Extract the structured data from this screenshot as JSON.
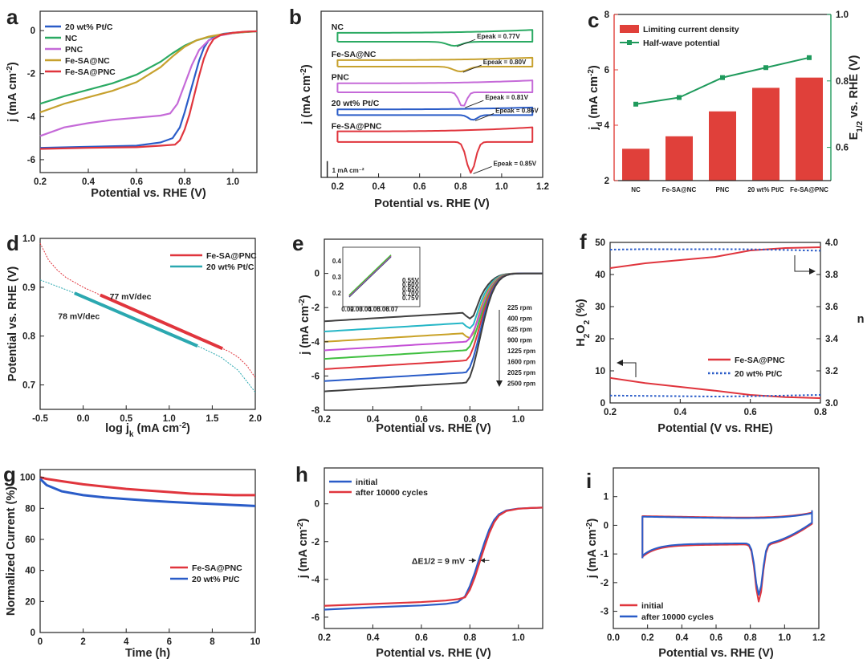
{
  "colors": {
    "pt": "#2A5CC8",
    "nc": "#2BAA63",
    "pnc": "#C56AD8",
    "fesanc": "#C7A12E",
    "fesapnc": "#E0353D",
    "teal": "#2BA8B0",
    "bar": "#E0403A",
    "green": "#1F9A5C",
    "dark": "#404040",
    "cyan": "#25B6C6",
    "mag": "#C44FD6",
    "lime": "#3FBF3F",
    "gold": "#C9A227"
  },
  "chart_data": [
    {
      "id": "a",
      "panel_label": "a",
      "type": "line",
      "xlabel": "Potential vs. RHE (V)",
      "ylabel": "j (mA cm⁻²)",
      "xlim": [
        0.2,
        1.1
      ],
      "ylim": [
        -6.6,
        0.9
      ],
      "xticks": [
        0.2,
        0.4,
        0.6,
        0.8,
        1.0
      ],
      "yticks": [
        -6,
        -4,
        -2,
        0
      ],
      "legend": "top-left",
      "series": [
        {
          "name": "20 wt% Pt/C",
          "color_key": "pt",
          "x": [
            0.2,
            0.4,
            0.6,
            0.7,
            0.75,
            0.78,
            0.8,
            0.82,
            0.84,
            0.86,
            0.88,
            0.9,
            0.93,
            0.96,
            1.0,
            1.05,
            1.1
          ],
          "y": [
            -5.45,
            -5.4,
            -5.35,
            -5.2,
            -5.0,
            -4.5,
            -3.8,
            -3.0,
            -2.2,
            -1.4,
            -0.8,
            -0.45,
            -0.25,
            -0.15,
            -0.1,
            -0.06,
            -0.03
          ]
        },
        {
          "name": "NC",
          "color_key": "nc",
          "x": [
            0.2,
            0.3,
            0.4,
            0.5,
            0.6,
            0.7,
            0.75,
            0.8,
            0.85,
            0.9,
            0.95,
            1.0,
            1.05,
            1.1
          ],
          "y": [
            -3.4,
            -3.05,
            -2.75,
            -2.45,
            -2.05,
            -1.45,
            -1.05,
            -0.7,
            -0.45,
            -0.3,
            -0.2,
            -0.12,
            -0.07,
            -0.04
          ]
        },
        {
          "name": "PNC",
          "color_key": "pnc",
          "x": [
            0.2,
            0.3,
            0.4,
            0.5,
            0.6,
            0.7,
            0.74,
            0.77,
            0.8,
            0.83,
            0.86,
            0.9,
            0.95,
            1.0,
            1.05,
            1.1
          ],
          "y": [
            -4.9,
            -4.5,
            -4.3,
            -4.15,
            -4.05,
            -3.95,
            -3.85,
            -3.4,
            -2.5,
            -1.6,
            -0.9,
            -0.45,
            -0.22,
            -0.12,
            -0.06,
            -0.03
          ]
        },
        {
          "name": "Fe-SA@NC",
          "color_key": "fesanc",
          "x": [
            0.2,
            0.3,
            0.4,
            0.5,
            0.6,
            0.7,
            0.75,
            0.8,
            0.85,
            0.9,
            0.95,
            1.0,
            1.05,
            1.1
          ],
          "y": [
            -3.8,
            -3.4,
            -3.1,
            -2.8,
            -2.4,
            -1.7,
            -1.2,
            -0.75,
            -0.45,
            -0.28,
            -0.18,
            -0.11,
            -0.06,
            -0.03
          ]
        },
        {
          "name": "Fe-SA@PNC",
          "color_key": "fesapnc",
          "x": [
            0.2,
            0.4,
            0.6,
            0.7,
            0.76,
            0.78,
            0.8,
            0.82,
            0.84,
            0.86,
            0.88,
            0.9,
            0.92,
            0.95,
            1.0,
            1.05,
            1.1
          ],
          "y": [
            -5.5,
            -5.45,
            -5.42,
            -5.35,
            -5.3,
            -5.1,
            -4.6,
            -3.9,
            -3.0,
            -2.1,
            -1.3,
            -0.75,
            -0.4,
            -0.2,
            -0.1,
            -0.05,
            -0.03
          ]
        }
      ]
    },
    {
      "id": "b",
      "panel_label": "b",
      "type": "line",
      "xlabel": "Potential vs. RHE (V)",
      "ylabel": "j (mA cm⁻²)",
      "xlim": [
        0.12,
        1.2
      ],
      "ylim": [
        -10.2,
        0
      ],
      "xticks": [
        0.2,
        0.4,
        0.6,
        0.8,
        1.0,
        1.2
      ],
      "scale_bar": "1 mA cm⁻²",
      "series": [
        {
          "name": "NC",
          "color_key": "nc",
          "offset": -1.6,
          "cap": 0.55,
          "tilt": 0.18,
          "peak_x": 0.77,
          "peak_depth": 0.25,
          "peak_width": 0.05,
          "label_x": 0.17,
          "label_dy": 0.3,
          "peak_label": "E_peak = 0.77V"
        },
        {
          "name": "Fe-SA@NC",
          "color_key": "fesanc",
          "offset": -3.2,
          "cap": 0.4,
          "tilt": 0.15,
          "peak_x": 0.8,
          "peak_depth": 0.3,
          "peak_width": 0.05,
          "label_x": 0.17,
          "label_dy": 0.3,
          "peak_label": "E_peak = 0.80V"
        },
        {
          "name": "PNC",
          "color_key": "pnc",
          "offset": -4.7,
          "cap": 0.55,
          "tilt": 0.18,
          "peak_x": 0.81,
          "peak_depth": 0.9,
          "peak_width": 0.025,
          "label_x": 0.17,
          "label_dy": 0.3,
          "peak_label": "E_peak = 0.81V"
        },
        {
          "name": "20 wt% Pt/C",
          "color_key": "pt",
          "offset": -6.2,
          "cap": 0.35,
          "tilt": 0.12,
          "peak_x": 0.86,
          "peak_depth": 0.3,
          "peak_width": 0.03,
          "label_x": 0.17,
          "label_dy": 0.3,
          "peak_label": "E_peak = 0.86V"
        },
        {
          "name": "Fe-SA@PNC",
          "color_key": "fesapnc",
          "offset": -7.7,
          "cap": 0.65,
          "tilt": 0.25,
          "peak_x": 0.85,
          "peak_depth": 1.9,
          "peak_width": 0.03,
          "label_x": 0.17,
          "label_dy": 0.25,
          "peak_label": "E_peak = 0.85V"
        }
      ]
    },
    {
      "id": "c",
      "panel_label": "c",
      "type": "bar",
      "categories": [
        "NC",
        "Fe-SA@NC",
        "PNC",
        "20 wt% Pt/C",
        "Fe-SA@PNC"
      ],
      "ylabel": "j_d (mA cm⁻²)",
      "y2label": "E_1/2 vs. RHE (V)",
      "ylim": [
        2,
        8
      ],
      "y2lim": [
        0.5,
        1.0
      ],
      "yticks": [
        2,
        4,
        6,
        8
      ],
      "y2ticks": [
        0.6,
        0.8,
        1.0
      ],
      "legend": "top-left",
      "series": [
        {
          "name": "Limiting current density",
          "kind": "bar",
          "color_key": "bar",
          "values": [
            3.15,
            3.6,
            4.5,
            5.35,
            5.72
          ]
        },
        {
          "name": "Half-wave potential",
          "kind": "line",
          "color_key": "green",
          "axis": "right",
          "values": [
            0.73,
            0.75,
            0.81,
            0.84,
            0.87
          ]
        }
      ]
    },
    {
      "id": "d",
      "panel_label": "d",
      "type": "line",
      "xlabel": "log j_k (mA cm⁻²)",
      "ylabel": "Potential vs. RHE (V)",
      "xlim": [
        -0.5,
        2.0
      ],
      "ylim": [
        0.65,
        1.0
      ],
      "xticks": [
        -0.5,
        0.0,
        0.5,
        1.0,
        1.5,
        2.0
      ],
      "yticks": [
        0.7,
        0.8,
        0.9,
        1.0
      ],
      "legend": "top-right",
      "series": [
        {
          "name": "Fe-SA@PNC",
          "color_key": "fesapnc",
          "x": [
            -0.5,
            -0.4,
            -0.3,
            -0.2,
            -0.1,
            0.0,
            0.2,
            0.4,
            0.6,
            0.8,
            1.0,
            1.2,
            1.4,
            1.6,
            1.7,
            1.8,
            1.9,
            2.0
          ],
          "y": [
            0.99,
            0.955,
            0.935,
            0.92,
            0.91,
            0.9,
            0.884,
            0.869,
            0.853,
            0.838,
            0.822,
            0.807,
            0.792,
            0.776,
            0.768,
            0.757,
            0.74,
            0.715
          ],
          "fit_x": [
            0.2,
            1.62
          ]
        },
        {
          "name": "20 wt% Pt/C",
          "color_key": "teal",
          "x": [
            -0.5,
            -0.2,
            0.0,
            0.2,
            0.4,
            0.6,
            0.8,
            1.0,
            1.2,
            1.4,
            1.6,
            1.8,
            2.0
          ],
          "y": [
            0.915,
            0.895,
            0.881,
            0.866,
            0.851,
            0.835,
            0.82,
            0.805,
            0.79,
            0.774,
            0.757,
            0.73,
            0.685
          ],
          "fit_x": [
            -0.1,
            1.33
          ]
        }
      ],
      "annotations": [
        {
          "text": "77 mV/dec",
          "x": 0.55,
          "y": 0.875,
          "color_key": "fesapnc"
        },
        {
          "text": "78 mV/dec",
          "x": -0.05,
          "y": 0.835,
          "color_key": "teal"
        }
      ]
    },
    {
      "id": "e",
      "panel_label": "e",
      "type": "line",
      "xlabel": "Potential vs. RHE (V)",
      "ylabel": "j (mA cm⁻²)",
      "xlim": [
        0.2,
        1.1
      ],
      "ylim": [
        -8,
        2
      ],
      "xticks": [
        0.2,
        0.4,
        0.6,
        0.8,
        1.0
      ],
      "yticks": [
        -8,
        -6,
        -4,
        -2,
        0
      ],
      "series": [
        {
          "name": "225 rpm",
          "color_key": "dark",
          "limit": -2.8
        },
        {
          "name": "400 rpm",
          "color_key": "cyan",
          "limit": -3.4
        },
        {
          "name": "625 rpm",
          "color_key": "gold",
          "limit": -4.0
        },
        {
          "name": "900 rpm",
          "color_key": "mag",
          "limit": -4.5
        },
        {
          "name": "1225 rpm",
          "color_key": "lime",
          "limit": -5.0
        },
        {
          "name": "1600 rpm",
          "color_key": "fesapnc",
          "limit": -5.6
        },
        {
          "name": "2025 rpm",
          "color_key": "pt",
          "limit": -6.3
        },
        {
          "name": "2500 rpm",
          "color_key": "dark",
          "limit": -6.9
        }
      ],
      "inset": {
        "xticks": [
          "0.02",
          "0.03",
          "0.04",
          "0.05",
          "0.06",
          "0.07"
        ],
        "yticks": [
          "0.2",
          "0.3",
          "0.4"
        ],
        "legend": [
          "0.55V",
          "0.60V",
          "0.65V",
          "0.70V",
          "0.75V"
        ]
      }
    },
    {
      "id": "f",
      "panel_label": "f",
      "type": "line",
      "xlabel": "Potential (V vs. RHE)",
      "ylabel": "H₂O₂ (%)",
      "y2label": "n",
      "xlim": [
        0.2,
        0.8
      ],
      "ylim": [
        0,
        50
      ],
      "y2lim": [
        3.0,
        4.0
      ],
      "xticks": [
        0.2,
        0.4,
        0.6,
        0.8
      ],
      "yticks": [
        0,
        10,
        20,
        30,
        40,
        50
      ],
      "y2ticks": [
        3.0,
        3.2,
        3.4,
        3.6,
        3.8,
        4.0
      ],
      "legend": "lower-right",
      "series": [
        {
          "name": "Fe-SA@PNC",
          "color_key": "fesapnc",
          "axis": "left",
          "x": [
            0.2,
            0.3,
            0.4,
            0.5,
            0.6,
            0.7,
            0.8
          ],
          "y": [
            7.8,
            6.2,
            5.0,
            3.8,
            2.5,
            1.8,
            1.5
          ]
        },
        {
          "name": "Fe-SA@PNC n",
          "color_key": "fesapnc",
          "axis": "right",
          "x": [
            0.2,
            0.3,
            0.4,
            0.5,
            0.6,
            0.7,
            0.8
          ],
          "y": [
            3.84,
            3.87,
            3.89,
            3.91,
            3.95,
            3.965,
            3.97
          ]
        },
        {
          "name": "20 wt% Pt/C",
          "color_key": "pt",
          "axis": "left",
          "dashed": true,
          "x": [
            0.2,
            0.3,
            0.4,
            0.5,
            0.6,
            0.7,
            0.8
          ],
          "y": [
            2.3,
            2.2,
            2.1,
            2.0,
            2.1,
            2.3,
            2.5
          ]
        },
        {
          "name": "20 wt% Pt/C n",
          "color_key": "pt",
          "axis": "right",
          "dashed": true,
          "x": [
            0.2,
            0.3,
            0.4,
            0.5,
            0.6,
            0.7,
            0.8
          ],
          "y": [
            3.955,
            3.958,
            3.957,
            3.958,
            3.957,
            3.953,
            3.948
          ]
        }
      ]
    },
    {
      "id": "g",
      "panel_label": "g",
      "type": "line",
      "xlabel": "Time (h)",
      "ylabel": "Normalized Current (%)",
      "xlim": [
        0,
        10
      ],
      "ylim": [
        0,
        105
      ],
      "xticks": [
        0,
        2,
        4,
        6,
        8,
        10
      ],
      "yticks": [
        0,
        20,
        40,
        60,
        80,
        100
      ],
      "legend": "lower-right",
      "series": [
        {
          "name": "Fe-SA@PNC",
          "color_key": "fesapnc",
          "x": [
            0,
            0.3,
            1,
            2,
            3,
            4,
            5,
            6,
            7,
            8,
            9,
            10
          ],
          "y": [
            100,
            99,
            97.5,
            95.5,
            94,
            92.5,
            91.5,
            90.5,
            89.5,
            89,
            88.5,
            88.5
          ]
        },
        {
          "name": "20 wt% Pt/C",
          "color_key": "pt",
          "x": [
            0,
            0.3,
            1,
            2,
            3,
            4,
            5,
            6,
            7,
            8,
            9,
            10
          ],
          "y": [
            99,
            95,
            91,
            88.5,
            87,
            86,
            85,
            84.2,
            83.5,
            82.8,
            82.2,
            81.5
          ]
        }
      ]
    },
    {
      "id": "h",
      "panel_label": "h",
      "type": "line",
      "xlabel": "Potential vs. RHE (V)",
      "ylabel": "j (mA cm⁻²)",
      "xlim": [
        0.2,
        1.1
      ],
      "ylim": [
        -6.6,
        1.9
      ],
      "xticks": [
        0.2,
        0.4,
        0.6,
        0.8,
        1.0
      ],
      "yticks": [
        -6,
        -4,
        -2,
        0
      ],
      "legend": "top-left",
      "annotation": "ΔE1/2 = 9 mV",
      "series": [
        {
          "name": "initial",
          "color_key": "pt",
          "x": [
            0.2,
            0.4,
            0.6,
            0.7,
            0.75,
            0.78,
            0.8,
            0.82,
            0.84,
            0.86,
            0.88,
            0.9,
            0.92,
            0.95,
            1.0,
            1.05,
            1.1
          ],
          "y": [
            -5.6,
            -5.48,
            -5.38,
            -5.3,
            -5.2,
            -4.9,
            -4.35,
            -3.65,
            -2.85,
            -2.05,
            -1.35,
            -0.85,
            -0.55,
            -0.35,
            -0.25,
            -0.22,
            -0.2
          ]
        },
        {
          "name": "after 10000 cycles",
          "color_key": "fesapnc",
          "x": [
            0.2,
            0.4,
            0.6,
            0.7,
            0.75,
            0.78,
            0.8,
            0.82,
            0.84,
            0.86,
            0.88,
            0.9,
            0.92,
            0.95,
            1.0,
            1.05,
            1.1
          ],
          "y": [
            -5.4,
            -5.3,
            -5.2,
            -5.12,
            -5.05,
            -4.95,
            -4.55,
            -3.9,
            -3.1,
            -2.3,
            -1.55,
            -0.98,
            -0.62,
            -0.38,
            -0.26,
            -0.22,
            -0.2
          ]
        }
      ]
    },
    {
      "id": "i",
      "panel_label": "i",
      "type": "line",
      "xlabel": "Potential vs. RHE (V)",
      "ylabel": "j (mA cm⁻²)",
      "xlim": [
        0.0,
        1.2
      ],
      "ylim": [
        -3.6,
        2.0
      ],
      "xticks": [
        0.0,
        0.2,
        0.4,
        0.6,
        0.8,
        1.0,
        1.2
      ],
      "yticks": [
        -3,
        -2,
        -1,
        0,
        1
      ],
      "legend": "lower-left",
      "series": [
        {
          "name": "initial",
          "color_key": "fesapnc",
          "peak": -2.8
        },
        {
          "name": "after 10000 cycles",
          "color_key": "pt",
          "peak": -2.6
        }
      ]
    }
  ]
}
